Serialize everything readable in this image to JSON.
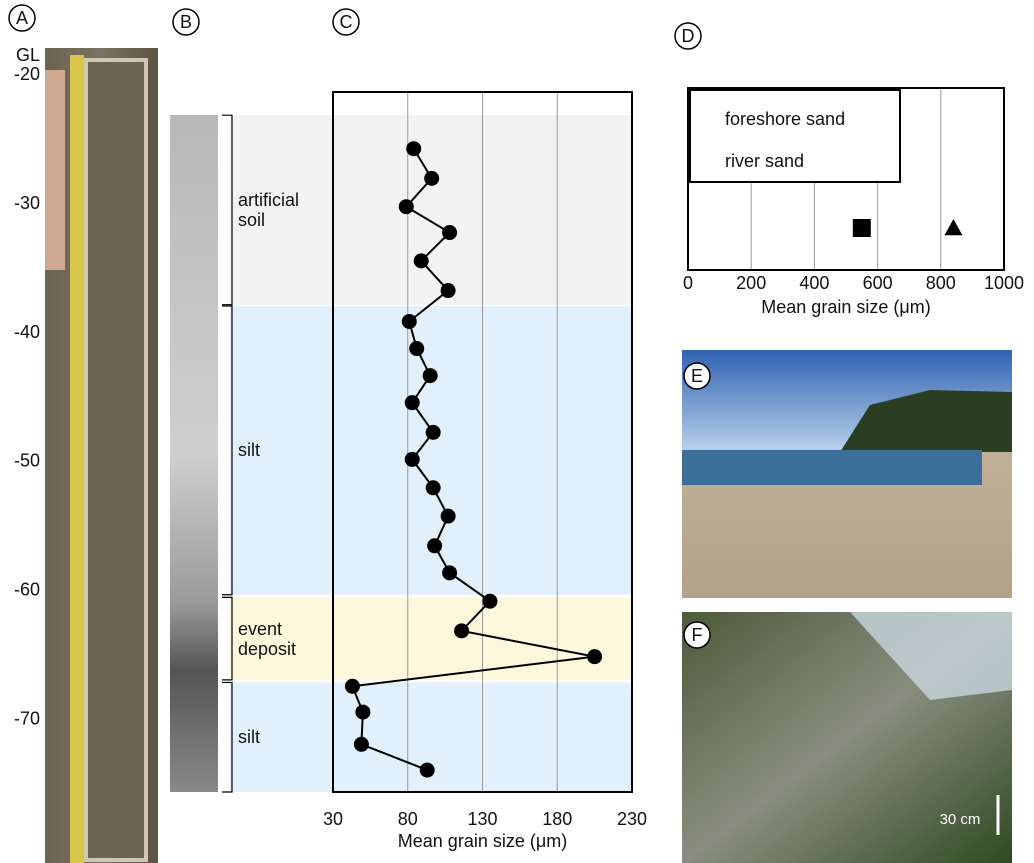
{
  "panel_labels": [
    "A",
    "B",
    "C",
    "D",
    "E",
    "F"
  ],
  "scale_bar": "30 cm",
  "chart_data": [
    {
      "type": "line",
      "xlabel": "Mean grain size (μm)",
      "ylabel": "GL",
      "xlim": [
        30,
        230
      ],
      "xticks": [
        30,
        80,
        130,
        180,
        230
      ],
      "ylim": [
        -21.3,
        -75.6
      ],
      "yticks": [
        -20,
        -30,
        -40,
        -50,
        -60,
        -70
      ],
      "grid": true,
      "color": "#000000",
      "y": [
        -25.7,
        -28.0,
        -30.2,
        -32.2,
        -34.4,
        -36.7,
        -39.1,
        -41.2,
        -43.3,
        -45.4,
        -47.7,
        -49.8,
        -52.0,
        -54.2,
        -56.5,
        -58.6,
        -60.8,
        -63.1,
        -65.1,
        -67.4,
        -69.4,
        -71.9,
        -73.9
      ],
      "values": [
        84,
        96,
        79,
        108,
        89,
        107,
        81,
        86,
        95,
        83,
        97,
        83,
        97,
        107,
        98,
        108,
        135,
        116,
        205,
        43,
        50,
        49,
        93
      ],
      "zones": [
        {
          "label": "artificial soil",
          "top": -23.1,
          "bottom": -37.8,
          "color": "#f2f2f2"
        },
        {
          "label": "silt",
          "top": -37.9,
          "bottom": -60.3,
          "color": "#e1f0fa"
        },
        {
          "label": "event deposit",
          "top": -60.5,
          "bottom": -66.9,
          "color": "#fdf8dc"
        },
        {
          "label": "silt",
          "top": -67.1,
          "bottom": -75.6,
          "color": "#e1f0fa"
        }
      ]
    },
    {
      "type": "scatter",
      "xlabel": "Mean grain size (μm)",
      "xlim": [
        0,
        1000
      ],
      "xticks": [
        0,
        200,
        400,
        600,
        800,
        1000
      ],
      "grid": true,
      "series": [
        {
          "name": "foreshore sand",
          "marker": "square",
          "color": "#000000",
          "values": [
            550
          ]
        },
        {
          "name": "river sand",
          "marker": "triangle",
          "color": "#000000",
          "values": [
            840
          ]
        }
      ]
    }
  ]
}
